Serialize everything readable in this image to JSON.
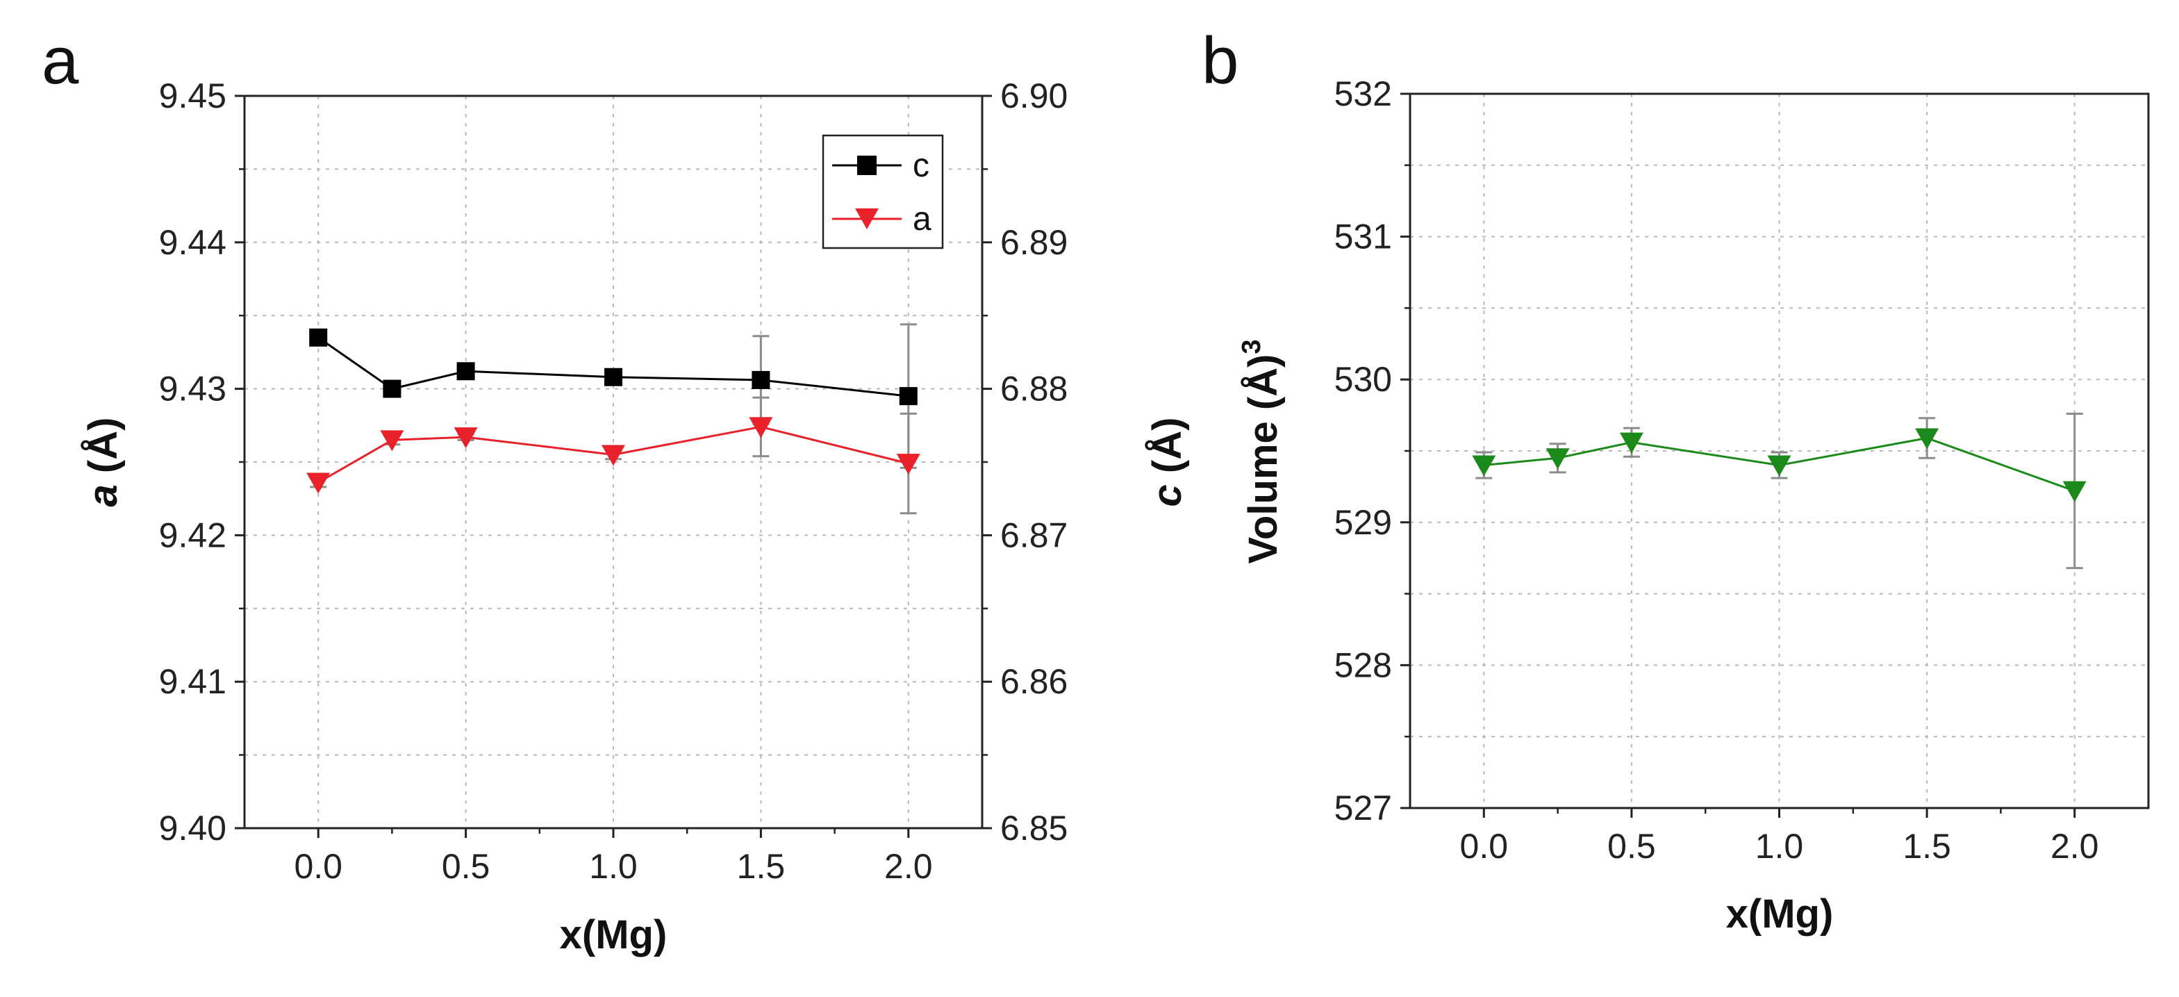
{
  "chart_data": [
    {
      "panel_label": "a",
      "type": "line",
      "xlabel": "x(Mg)",
      "ylabel_left": {
        "main": "a",
        "unit": " (Å)"
      },
      "ylabel_right": {
        "main": "c",
        "unit": " (Å)"
      },
      "xlim": [
        -0.25,
        2.25
      ],
      "xticks": [
        "0.0",
        "0.5",
        "1.0",
        "1.5",
        "2.0"
      ],
      "ylim_left": [
        9.4,
        9.45
      ],
      "yticks_left": [
        "9.40",
        "9.41",
        "9.42",
        "9.43",
        "9.44",
        "9.45"
      ],
      "ylim_right": [
        6.85,
        6.9
      ],
      "yticks_right": [
        "6.85",
        "6.86",
        "6.87",
        "6.88",
        "6.89",
        "6.90"
      ],
      "grid": true,
      "legend_position": "top-right",
      "x": [
        0.0,
        0.25,
        0.5,
        1.0,
        1.5,
        2.0
      ],
      "series": [
        {
          "name": "c",
          "axis": "right",
          "color": "#000000",
          "marker": "square",
          "values": [
            6.8835,
            6.88,
            6.8812,
            6.8808,
            6.8806,
            6.8795
          ],
          "errors": [
            0.0002,
            0.0002,
            0.0002,
            0.0002,
            0.003,
            0.0049
          ]
        },
        {
          "name": "a",
          "axis": "left",
          "color": "#e8212a",
          "marker": "triangle-down",
          "values": [
            9.4236,
            9.4265,
            9.4267,
            9.4255,
            9.4274,
            9.4249
          ],
          "errors": [
            0.0003,
            0.0003,
            0.0002,
            0.0003,
            0.002,
            0.0034
          ]
        }
      ]
    },
    {
      "panel_label": "b",
      "type": "line",
      "xlabel": "x(Mg)",
      "ylabel": {
        "main": "Volume (Å)",
        "sup": "3"
      },
      "xlim": [
        -0.25,
        2.25
      ],
      "xticks": [
        "0.0",
        "0.5",
        "1.0",
        "1.5",
        "2.0"
      ],
      "ylim": [
        527,
        532
      ],
      "yticks": [
        "527",
        "528",
        "529",
        "530",
        "531",
        "532"
      ],
      "grid": true,
      "x": [
        0.0,
        0.25,
        0.5,
        1.0,
        1.5,
        2.0
      ],
      "series": [
        {
          "name": "Volume",
          "color": "#1b8a1b",
          "marker": "triangle-down",
          "values": [
            529.4,
            529.45,
            529.56,
            529.4,
            529.59,
            529.22
          ],
          "errors": [
            0.09,
            0.1,
            0.1,
            0.09,
            0.14,
            0.54
          ]
        }
      ]
    }
  ]
}
